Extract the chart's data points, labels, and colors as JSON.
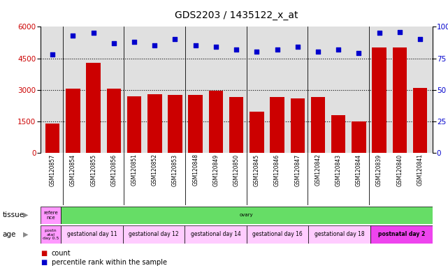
{
  "title": "GDS2203 / 1435122_x_at",
  "samples": [
    "GSM120857",
    "GSM120854",
    "GSM120855",
    "GSM120856",
    "GSM120851",
    "GSM120852",
    "GSM120853",
    "GSM120848",
    "GSM120849",
    "GSM120850",
    "GSM120845",
    "GSM120846",
    "GSM120847",
    "GSM120842",
    "GSM120843",
    "GSM120844",
    "GSM120839",
    "GSM120840",
    "GSM120841"
  ],
  "counts": [
    1400,
    3050,
    4300,
    3050,
    2700,
    2800,
    2750,
    2750,
    2950,
    2650,
    1950,
    2650,
    2600,
    2650,
    1800,
    1500,
    5000,
    5000,
    3100
  ],
  "percentiles": [
    78,
    93,
    95,
    87,
    88,
    85,
    90,
    85,
    84,
    82,
    80,
    82,
    84,
    80,
    82,
    79,
    95,
    96,
    90
  ],
  "bar_color": "#cc0000",
  "dot_color": "#0000cc",
  "ylim_left": [
    0,
    6000
  ],
  "ylim_right": [
    0,
    100
  ],
  "yticks_left": [
    0,
    1500,
    3000,
    4500,
    6000
  ],
  "yticks_right": [
    0,
    25,
    50,
    75,
    100
  ],
  "tissue_row": [
    {
      "label": "refere\nnce",
      "color": "#ff99ff",
      "span": 1
    },
    {
      "label": "ovary",
      "color": "#66dd66",
      "span": 18
    }
  ],
  "age_row": [
    {
      "label": "postn\natal\nday 0.5",
      "color": "#ff99ff",
      "span": 1
    },
    {
      "label": "gestational day 11",
      "color": "#ffccff",
      "span": 3
    },
    {
      "label": "gestational day 12",
      "color": "#ffccff",
      "span": 3
    },
    {
      "label": "gestational day 14",
      "color": "#ffccff",
      "span": 3
    },
    {
      "label": "gestational day 16",
      "color": "#ffccff",
      "span": 3
    },
    {
      "label": "gestational day 18",
      "color": "#ffccff",
      "span": 3
    },
    {
      "label": "postnatal day 2",
      "color": "#ee44ee",
      "span": 3
    }
  ],
  "group_separators": [
    0.5,
    3.5,
    6.5,
    9.5,
    12.5,
    15.5
  ],
  "tissue_label": "tissue",
  "age_label": "age",
  "legend_count": "count",
  "legend_pct": "percentile rank within the sample",
  "bg_color": "#e0e0e0",
  "title_fontsize": 10,
  "tick_fontsize": 7.5
}
